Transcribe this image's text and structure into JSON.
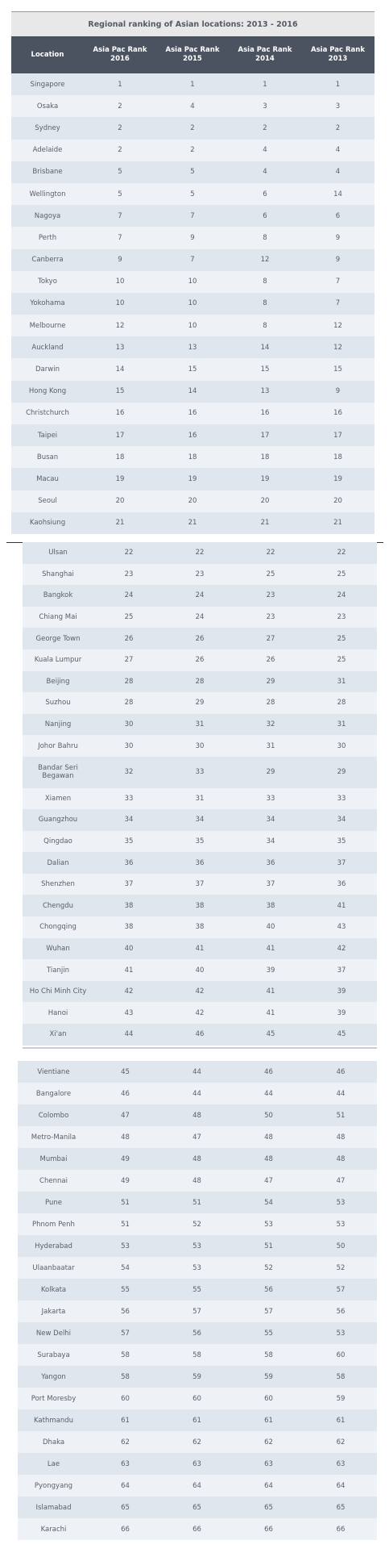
{
  "chart_data": {
    "type": "table",
    "title": "Regional ranking of Asian locations: 2013 - 2016",
    "columns": [
      "Location",
      "Asia Pac Rank\n2016",
      "Asia Pac Rank\n2015",
      "Asia Pac Rank\n2014",
      "Asia Pac Rank\n2013"
    ],
    "rows": [
      [
        "Singapore",
        1,
        1,
        1,
        1
      ],
      [
        "Osaka",
        2,
        4,
        3,
        3
      ],
      [
        "Sydney",
        2,
        2,
        2,
        2
      ],
      [
        "Adelaide",
        2,
        2,
        4,
        4
      ],
      [
        "Brisbane",
        5,
        5,
        4,
        4
      ],
      [
        "Wellington",
        5,
        5,
        6,
        14
      ],
      [
        "Nagoya",
        7,
        7,
        6,
        6
      ],
      [
        "Perth",
        7,
        9,
        8,
        9
      ],
      [
        "Canberra",
        9,
        7,
        12,
        9
      ],
      [
        "Tokyo",
        10,
        10,
        8,
        7
      ],
      [
        "Yokohama",
        10,
        10,
        8,
        7
      ],
      [
        "Melbourne",
        12,
        10,
        8,
        12
      ],
      [
        "Auckland",
        13,
        13,
        14,
        12
      ],
      [
        "Darwin",
        14,
        15,
        15,
        15
      ],
      [
        "Hong Kong",
        15,
        14,
        13,
        9
      ],
      [
        "Christchurch",
        16,
        16,
        16,
        16
      ],
      [
        "Taipei",
        17,
        16,
        17,
        17
      ],
      [
        "Busan",
        18,
        18,
        18,
        18
      ],
      [
        "Macau",
        19,
        19,
        19,
        19
      ],
      [
        "Seoul",
        20,
        20,
        20,
        20
      ],
      [
        "Kaohsiung",
        21,
        21,
        21,
        21
      ],
      [
        "Ulsan",
        22,
        22,
        22,
        22
      ],
      [
        "Shanghai",
        23,
        23,
        25,
        25
      ],
      [
        "Bangkok",
        24,
        24,
        23,
        24
      ],
      [
        "Chiang Mai",
        25,
        24,
        23,
        23
      ],
      [
        "George Town",
        26,
        26,
        27,
        25
      ],
      [
        "Kuala Lumpur",
        27,
        26,
        26,
        25
      ],
      [
        "Beijing",
        28,
        28,
        29,
        31
      ],
      [
        "Suzhou",
        28,
        29,
        28,
        28
      ],
      [
        "Nanjing",
        30,
        31,
        32,
        31
      ],
      [
        "Johor Bahru",
        30,
        30,
        31,
        30
      ],
      [
        "Bandar Seri\nBegawan",
        32,
        33,
        29,
        29
      ],
      [
        "Xiamen",
        33,
        31,
        33,
        33
      ],
      [
        "Guangzhou",
        34,
        34,
        34,
        34
      ],
      [
        "Qingdao",
        35,
        35,
        34,
        35
      ],
      [
        "Dalian",
        36,
        36,
        36,
        37
      ],
      [
        "Shenzhen",
        37,
        37,
        37,
        36
      ],
      [
        "Chengdu",
        38,
        38,
        38,
        41
      ],
      [
        "Chongqing",
        38,
        38,
        40,
        43
      ],
      [
        "Wuhan",
        40,
        41,
        41,
        42
      ],
      [
        "Tianjin",
        41,
        40,
        39,
        37
      ],
      [
        "Ho Chi Minh City",
        42,
        42,
        41,
        39
      ],
      [
        "Hanoi",
        43,
        42,
        41,
        39
      ],
      [
        "Xi'an",
        44,
        46,
        45,
        45
      ],
      [
        "Vientiane",
        45,
        44,
        46,
        46
      ],
      [
        "Bangalore",
        46,
        44,
        44,
        44
      ],
      [
        "Colombo",
        47,
        48,
        50,
        51
      ],
      [
        "Metro-Manila",
        48,
        47,
        48,
        48
      ],
      [
        "Mumbai",
        49,
        48,
        48,
        48
      ],
      [
        "Chennai",
        49,
        48,
        47,
        47
      ],
      [
        "Pune",
        51,
        51,
        54,
        53
      ],
      [
        "Phnom Penh",
        51,
        52,
        53,
        53
      ],
      [
        "Hyderabad",
        53,
        53,
        51,
        50
      ],
      [
        "Ulaanbaatar",
        54,
        53,
        52,
        52
      ],
      [
        "Kolkata",
        55,
        55,
        56,
        57
      ],
      [
        "Jakarta",
        56,
        57,
        57,
        56
      ],
      [
        "New Delhi",
        57,
        56,
        55,
        53
      ],
      [
        "Surabaya",
        58,
        58,
        58,
        60
      ],
      [
        "Yangon",
        58,
        59,
        59,
        58
      ],
      [
        "Port Moresby",
        60,
        60,
        60,
        59
      ],
      [
        "Kathmandu",
        61,
        61,
        61,
        61
      ],
      [
        "Dhaka",
        62,
        62,
        62,
        62
      ],
      [
        "Lae",
        63,
        63,
        63,
        63
      ],
      [
        "Pyongyang",
        64,
        64,
        64,
        64
      ],
      [
        "Islamabad",
        65,
        65,
        65,
        65
      ],
      [
        "Karachi",
        66,
        66,
        66,
        66
      ]
    ]
  }
}
